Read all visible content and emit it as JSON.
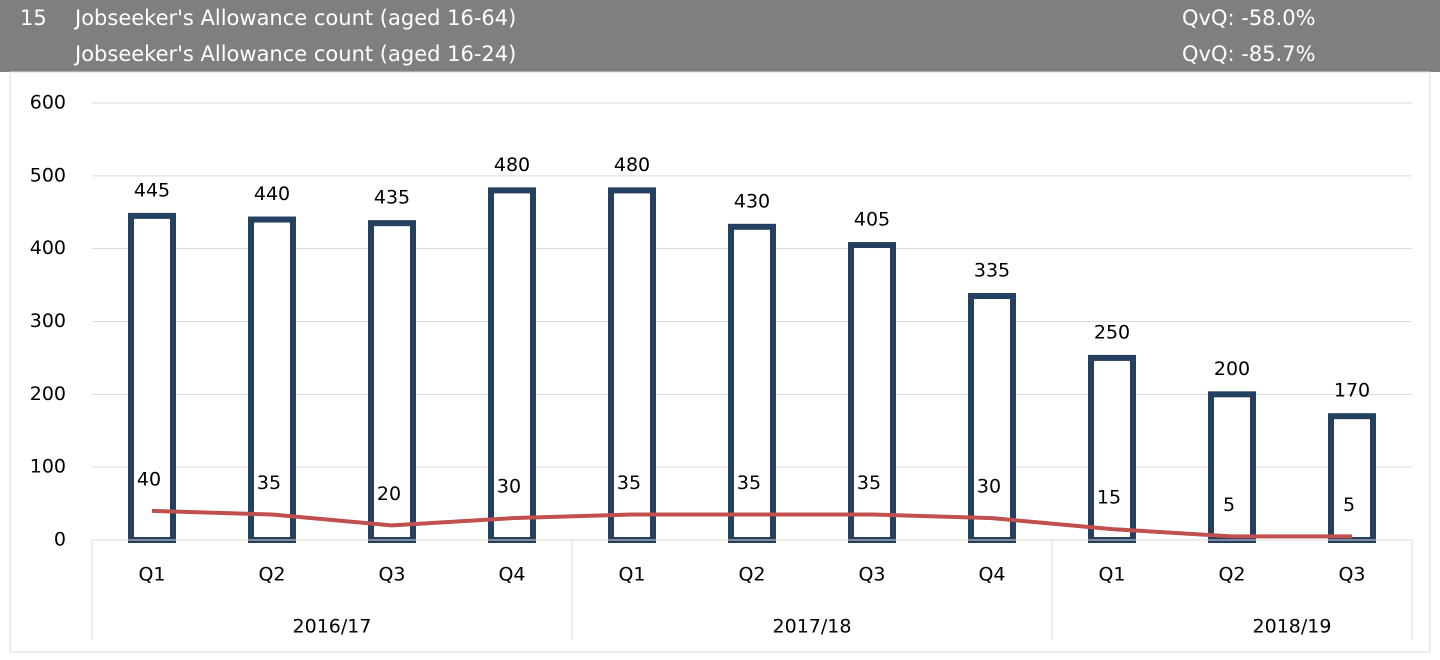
{
  "header": {
    "rows": [
      {
        "number": "15",
        "label": "Jobseeker's Allowance count (aged 16-64)",
        "change": "QvQ: -58.0%"
      },
      {
        "label": "Jobseeker's Allowance count (aged 16-24)",
        "change": "QvQ: -85.7%"
      }
    ]
  },
  "chart_data": {
    "type": "bar",
    "groups": [
      {
        "label": "2016/17",
        "categories": [
          "Q1",
          "Q2",
          "Q3",
          "Q4"
        ]
      },
      {
        "label": "2017/18",
        "categories": [
          "Q1",
          "Q2",
          "Q3",
          "Q4"
        ]
      },
      {
        "label": "2018/19",
        "categories": [
          "Q1",
          "Q2",
          "Q3"
        ]
      }
    ],
    "series": [
      {
        "type": "bar",
        "color": "#243f60",
        "values": [
          445,
          440,
          435,
          480,
          480,
          430,
          405,
          335,
          250,
          200,
          170
        ]
      },
      {
        "type": "line",
        "color": "#c0504d",
        "values": [
          40,
          35,
          20,
          30,
          35,
          35,
          35,
          30,
          15,
          5,
          5
        ]
      }
    ],
    "ylim": [
      0,
      600
    ],
    "yticks": [
      0,
      100,
      200,
      300,
      400,
      500,
      600
    ],
    "grid": true
  }
}
